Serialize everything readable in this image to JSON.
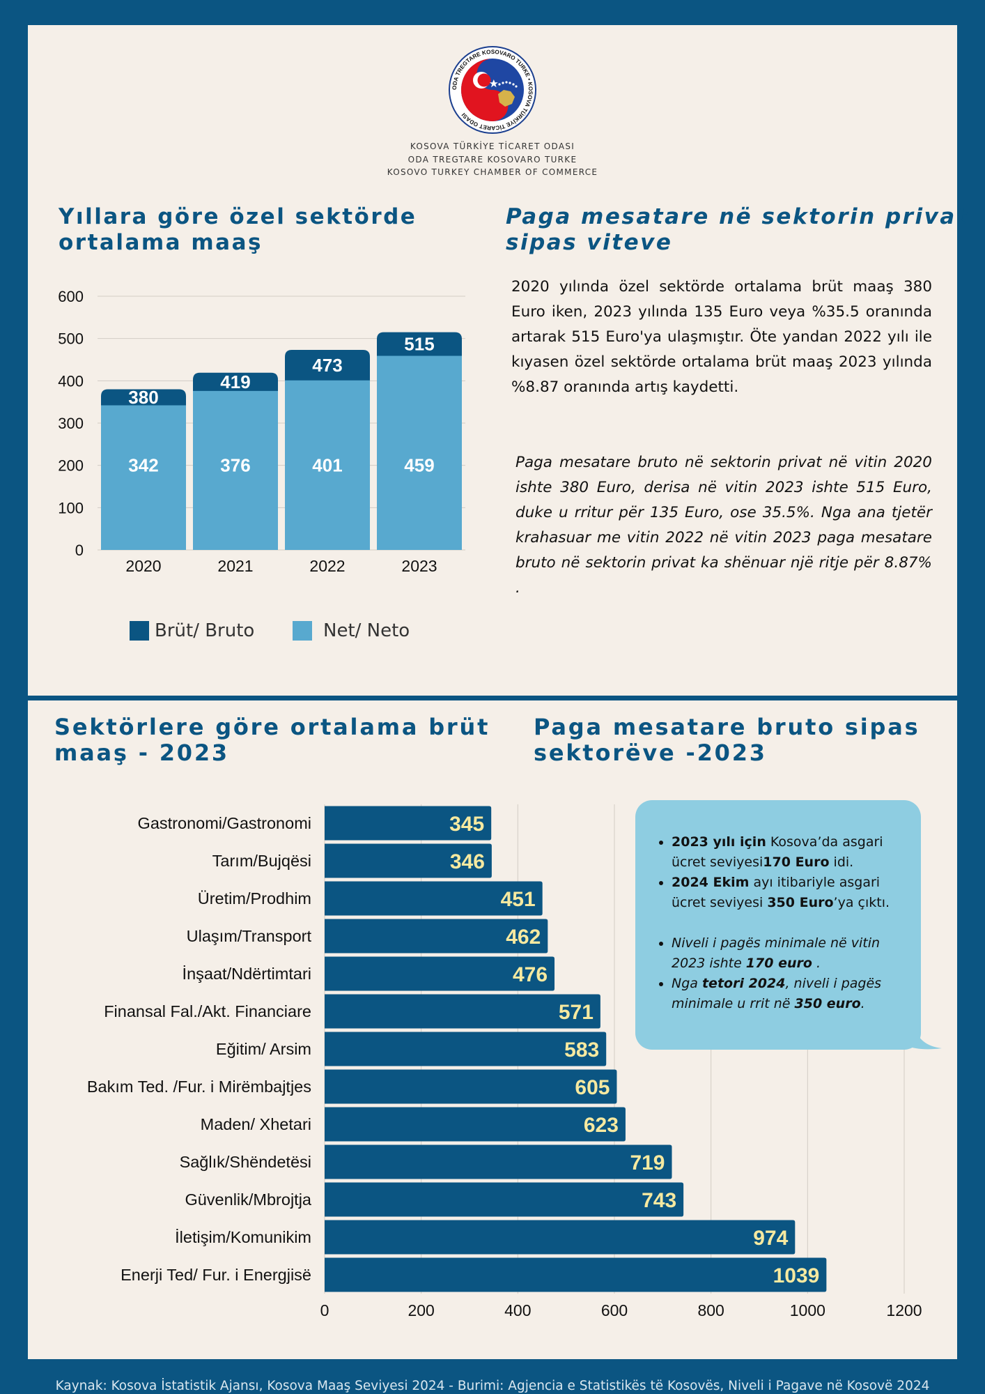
{
  "org": {
    "logo_alt": "Kosova Türkiye Ticaret Odası logo",
    "seal_ring_text": "ODA TREGTARE KOSOVARO TURKE • KOSOVA TÜRKİYE TİCARET ODASI",
    "name_tr": "KOSOVA TÜRKİYE TİCARET ODASI",
    "name_sq": "ODA TREGTARE KOSOVARO TURKE",
    "name_en": "KOSOVO TURKEY CHAMBER OF COMMERCE"
  },
  "top": {
    "heading_tr_line1": "Yıllara göre özel sektörde",
    "heading_tr_line2": "ortalama maaş",
    "heading_sq_line1": "Paga mesatare në sektorin privat",
    "heading_sq_line2": "sipas viteve",
    "para_tr": "2020 yılında özel sektörde ortalama brüt maaş 380 Euro iken, 2023 yılında 135 Euro veya %35.5 oranında artarak 515 Euro'ya ulaşmıştır. Öte yandan 2022 yılı ile kıyasen özel sektörde ortalama brüt maaş 2023 yılında %8.87 oranında artış kaydetti.",
    "para_sq": "Paga mesatare bruto në sektorin privat në vitin 2020 ishte 380 Euro, derisa në vitin 2023 ishte 515 Euro, duke u rritur për 135 Euro, ose 35.5%. Nga ana tjetër krahasuar me vitin 2022 në vitin 2023 paga mesatare bruto në sektorin privat ka shënuar një ritje për 8.87% ."
  },
  "bottom": {
    "heading_tr_line1": "Sektörlere göre ortalama brüt",
    "heading_tr_line2": "maaş - 2023",
    "heading_sq_line1": "Paga mesatare bruto sipas",
    "heading_sq_line2": "sektorëve -2023",
    "callout": {
      "b1_bold": "2023 yılı için",
      "b1_rest": " Kosova’da asgari ücret  seviyesi",
      "b1_value": "170 Euro",
      "b1_end": " idi.",
      "b2_bold": "2024 Ekim",
      "b2_rest": " ayı itibariyle asgari ücret seviyesi ",
      "b2_value": "350 Euro",
      "b2_end": "’ya çıktı.",
      "b3_pre": "Niveli i pagës minimale  në vitin 2023 ishte ",
      "b3_value": "170 euro",
      "b3_end": " .",
      "b4_pre": "Nga ",
      "b4_bold": "tetori 2024",
      "b4_mid": ", niveli i pagës minimale u rrit në ",
      "b4_value": "350 euro",
      "b4_end": "."
    }
  },
  "footer": "Kaynak: Kosova İstatistik Ajansı, Kosova Maaş Seviyesi 2024   -   Burimi: Agjencia e Statistikës të Kosovës, Niveli i Pagave në Kosovë 2024",
  "colors": {
    "bruto": "#0b5582",
    "neto": "#58a9cf",
    "bar_label_yellow": "#f6e9a0",
    "callout": "#8ecde1",
    "background": "#0b5582",
    "panel": "#f5efe8"
  },
  "chart_data": [
    {
      "type": "bar",
      "stacked": "overlay",
      "categories": [
        "2020",
        "2021",
        "2022",
        "2023"
      ],
      "series": [
        {
          "name": "Brüt/ Bruto",
          "values": [
            380,
            419,
            473,
            515
          ]
        },
        {
          "name": "Net/ Neto",
          "values": [
            342,
            376,
            401,
            459
          ]
        }
      ],
      "yticks": [
        0,
        100,
        200,
        300,
        400,
        500,
        600
      ],
      "ylim": [
        0,
        600
      ],
      "grid": true,
      "legend": "bottom"
    },
    {
      "type": "bar",
      "orientation": "horizontal",
      "categories": [
        "Gastronomi/Gastronomi",
        "Tarım/Bujqësi",
        "Üretim/Prodhim",
        "Ulaşım/Transport",
        "İnşaat/Ndërtimtari",
        "Finansal Fal./Akt. Financiare",
        "Eğitim/ Arsim",
        "Bakım Ted. /Fur. i Mirëmbajtjes",
        "Maden/ Xhetari",
        "Sağlık/Shëndetësi",
        "Güvenlik/Mbrojtja",
        "İletişim/Komunikim",
        "Enerji Ted/ Fur. i Energjisë"
      ],
      "values": [
        345,
        346,
        451,
        462,
        476,
        571,
        583,
        605,
        623,
        719,
        743,
        974,
        1039
      ],
      "xticks": [
        0,
        200,
        400,
        600,
        800,
        1000,
        1200
      ],
      "xlim": [
        0,
        1200
      ],
      "grid": true
    }
  ]
}
